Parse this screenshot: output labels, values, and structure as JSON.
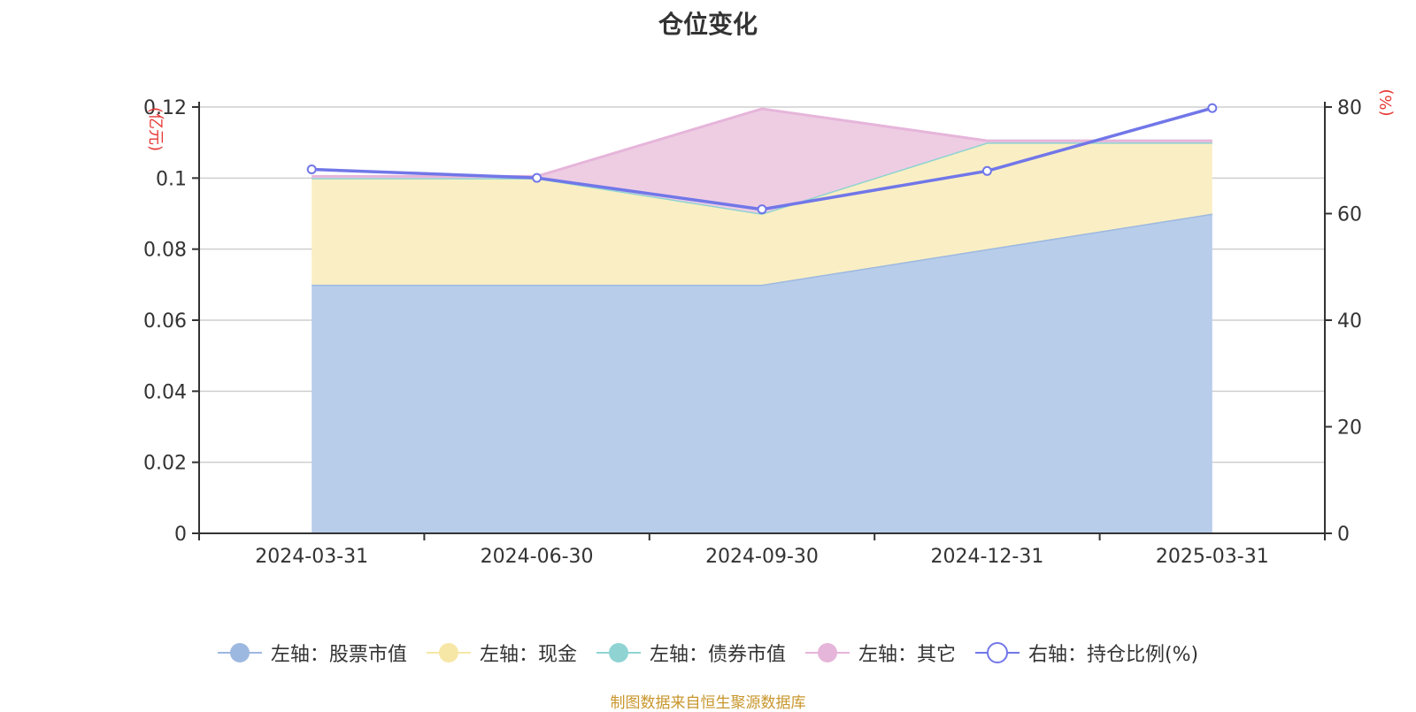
{
  "chart_data": {
    "type": "area",
    "title": "仓位变化",
    "categories": [
      "2024-03-31",
      "2024-06-30",
      "2024-09-30",
      "2024-12-31",
      "2025-03-31"
    ],
    "stacked": true,
    "left_axis": {
      "unit_label": "(亿元)",
      "ylim": [
        0,
        0.12
      ],
      "ticks": [
        0,
        0.02,
        0.04,
        0.06,
        0.08,
        0.1,
        0.12
      ],
      "color": "#e53935"
    },
    "right_axis": {
      "unit_label": "(%)",
      "ylim": [
        0,
        80
      ],
      "ticks": [
        0,
        20,
        40,
        60,
        80
      ],
      "color": "#e53935"
    },
    "grid": true,
    "legend_position": "bottom",
    "series": [
      {
        "name": "左轴：股票市值",
        "axis": "left",
        "kind": "area",
        "color": "#9db8e0",
        "fill": "#b8cdea",
        "values": [
          0.07,
          0.07,
          0.07,
          0.08,
          0.09
        ]
      },
      {
        "name": "左轴：现金",
        "axis": "left",
        "kind": "area",
        "color": "#f7e7a6",
        "fill": "#faefc4",
        "values": [
          0.03,
          0.03,
          0.02,
          0.03,
          0.02
        ]
      },
      {
        "name": "左轴：债券市值",
        "axis": "left",
        "kind": "area",
        "color": "#8fd3d3",
        "fill": "#b6e3e3",
        "values": [
          0,
          0,
          0,
          0,
          0
        ]
      },
      {
        "name": "左轴：其它",
        "axis": "left",
        "kind": "area",
        "color": "#e6b5da",
        "fill": "#eecde3",
        "values": [
          0.0005,
          0.0005,
          0.0295,
          0.0005,
          0.0005
        ]
      },
      {
        "name": "右轴：持仓比例(%)",
        "axis": "right",
        "kind": "line",
        "color": "#7177e8",
        "values": [
          68.3,
          66.7,
          60.8,
          68.0,
          79.8
        ]
      }
    ]
  },
  "footer": {
    "source": "制图数据来自恒生聚源数据库"
  }
}
